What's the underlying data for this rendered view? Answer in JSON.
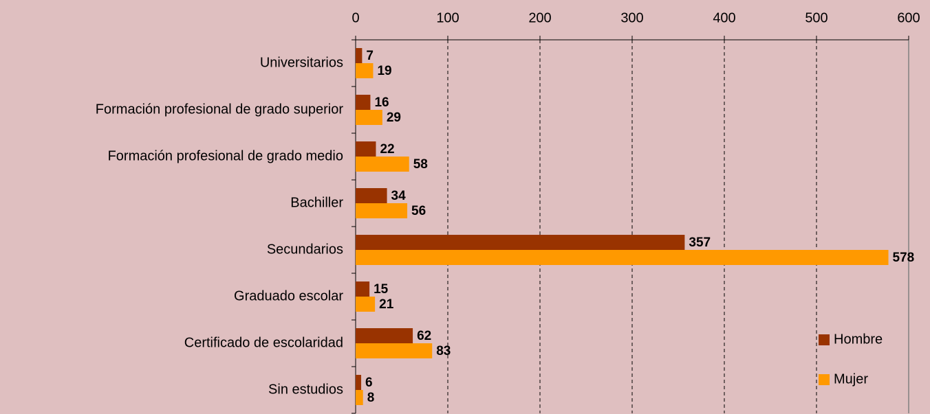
{
  "chart_data": {
    "type": "bar",
    "orientation": "horizontal",
    "categories": [
      "Universitarios",
      "Formación profesional de grado superior",
      "Formación profesional de grado medio",
      "Bachiller",
      "Secundarios",
      "Graduado escolar",
      "Certificado de escolaridad",
      "Sin estudios"
    ],
    "series": [
      {
        "name": "Hombre",
        "color": "#993300",
        "values": [
          7,
          16,
          22,
          34,
          357,
          15,
          62,
          6
        ]
      },
      {
        "name": "Mujer",
        "color": "#ff9900",
        "values": [
          19,
          29,
          58,
          56,
          578,
          21,
          83,
          8
        ]
      }
    ],
    "xlim": [
      0,
      600
    ],
    "xticks": [
      0,
      100,
      200,
      300,
      400,
      500,
      600
    ],
    "grid": true,
    "legend": "lower right"
  }
}
